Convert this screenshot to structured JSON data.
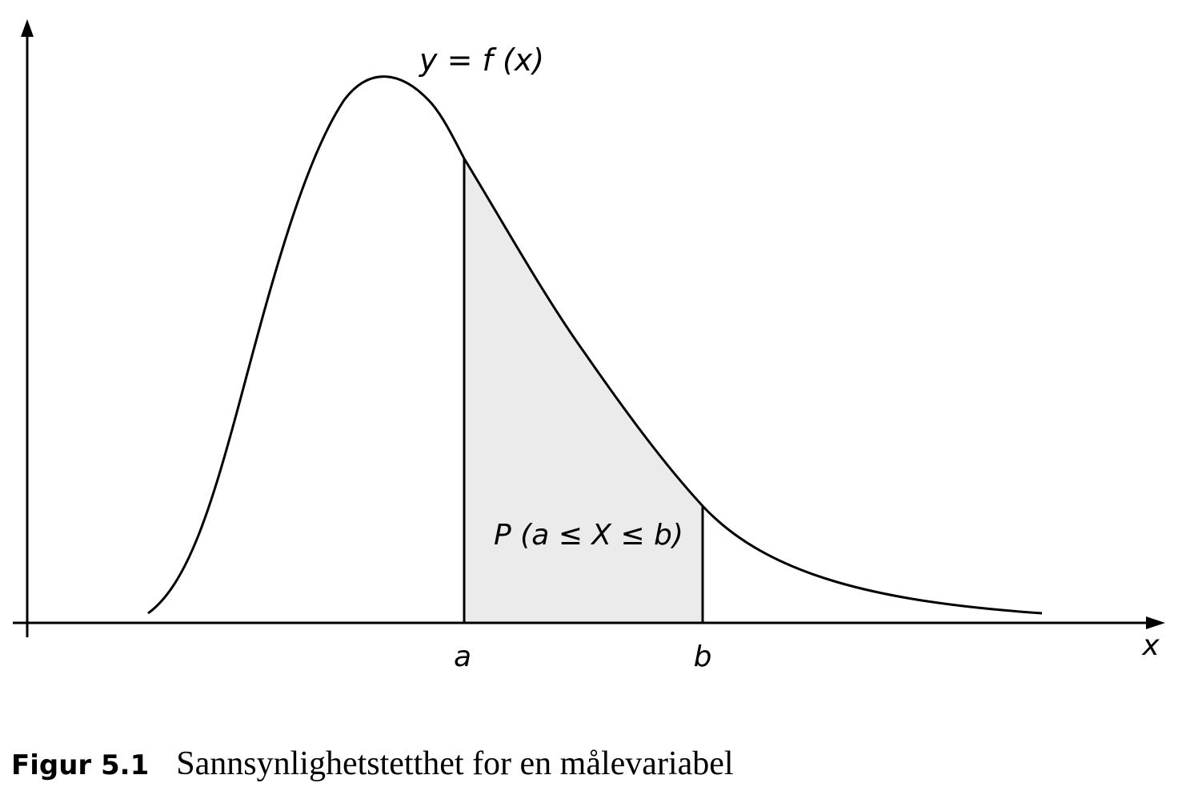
{
  "figure": {
    "function_label": "y = f (x)",
    "probability_label": "P (a ≤ X ≤ b)",
    "x_axis_label": "x",
    "bound_a_label": "a",
    "bound_b_label": "b",
    "shade_color": "#ebebeb",
    "line_color": "#000000"
  },
  "caption": {
    "label": "Figur 5.1",
    "text": "Sannsynlighetstetthet for en målevariabel"
  }
}
